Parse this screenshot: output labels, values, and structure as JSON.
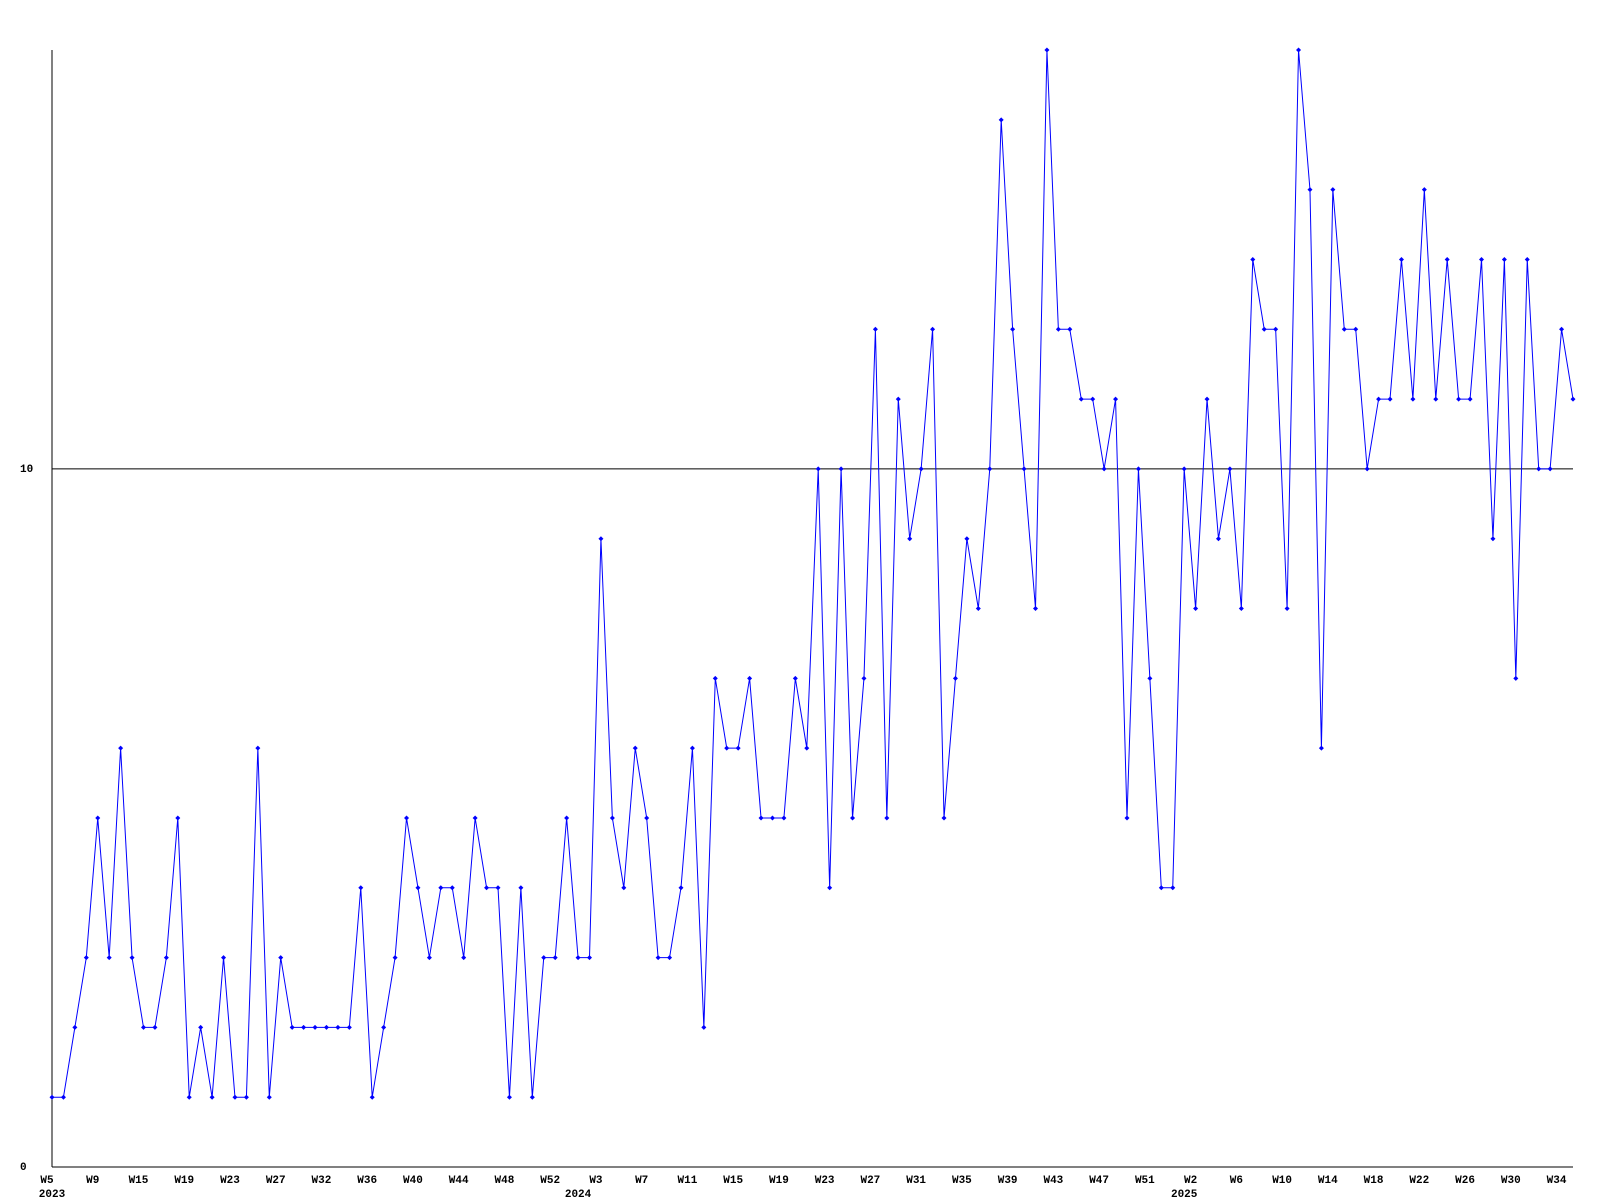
{
  "chart_data": {
    "type": "line",
    "categories": [
      "W5",
      null,
      null,
      null,
      "W9",
      null,
      null,
      null,
      "W15",
      null,
      null,
      null,
      "W19",
      null,
      null,
      null,
      "W23",
      null,
      null,
      null,
      "W27",
      null,
      null,
      null,
      "W32",
      null,
      null,
      null,
      "W36",
      null,
      null,
      null,
      "W40",
      null,
      null,
      null,
      "W44",
      null,
      null,
      null,
      "W48",
      null,
      null,
      null,
      "W52",
      null,
      null,
      null,
      "W3",
      null,
      null,
      null,
      "W7",
      null,
      null,
      null,
      "W11",
      null,
      null,
      null,
      "W15",
      null,
      null,
      null,
      "W19",
      null,
      null,
      null,
      "W23",
      null,
      null,
      null,
      "W27",
      null,
      null,
      null,
      "W31",
      null,
      null,
      null,
      "W35",
      null,
      null,
      null,
      "W39",
      null,
      null,
      null,
      "W43",
      null,
      null,
      null,
      "W47",
      null,
      null,
      null,
      "W51",
      null,
      null,
      null,
      "W2",
      null,
      null,
      null,
      "W6",
      null,
      null,
      null,
      "W10",
      null,
      null,
      null,
      "W14",
      null,
      null,
      null,
      "W18",
      null,
      null,
      null,
      "W22",
      null,
      null,
      null,
      "W26",
      null,
      null,
      null,
      "W30",
      null,
      null,
      null,
      "W34",
      null
    ],
    "category_years": [
      "2023",
      null,
      null,
      null,
      null,
      null,
      null,
      null,
      null,
      null,
      null,
      null,
      null,
      null,
      null,
      null,
      null,
      null,
      null,
      null,
      null,
      null,
      null,
      null,
      null,
      null,
      null,
      null,
      null,
      null,
      null,
      null,
      null,
      null,
      null,
      null,
      null,
      null,
      null,
      null,
      null,
      null,
      null,
      null,
      null,
      null,
      "2024",
      null,
      null,
      null,
      null,
      null,
      null,
      null,
      null,
      null,
      null,
      null,
      null,
      null,
      null,
      null,
      null,
      null,
      null,
      null,
      null,
      null,
      null,
      null,
      null,
      null,
      null,
      null,
      null,
      null,
      null,
      null,
      null,
      null,
      null,
      null,
      null,
      null,
      null,
      null,
      null,
      null,
      null,
      null,
      null,
      null,
      null,
      null,
      null,
      null,
      null,
      null,
      null,
      "2025",
      null,
      null,
      null,
      null,
      null,
      null,
      null,
      null,
      null,
      null,
      null,
      null,
      null,
      null,
      null,
      null,
      null,
      null,
      null,
      null,
      null,
      null,
      null,
      null,
      null,
      null,
      null,
      null,
      null,
      null,
      null,
      null,
      null,
      null
    ],
    "values": [
      1,
      1,
      2,
      3,
      5,
      3,
      6,
      3,
      2,
      2,
      3,
      5,
      1,
      2,
      1,
      3,
      1,
      1,
      6,
      1,
      3,
      2,
      2,
      2,
      2,
      2,
      2,
      4,
      1,
      2,
      3,
      5,
      4,
      3,
      4,
      4,
      3,
      5,
      4,
      4,
      1,
      4,
      1,
      3,
      3,
      5,
      3,
      3,
      9,
      5,
      4,
      6,
      5,
      3,
      3,
      4,
      6,
      2,
      7,
      6,
      6,
      7,
      5,
      5,
      5,
      7,
      6,
      10,
      4,
      10,
      5,
      7,
      12,
      5,
      11,
      9,
      10,
      12,
      5,
      7,
      9,
      8,
      10,
      15,
      12,
      10,
      8,
      16,
      12,
      12,
      11,
      11,
      10,
      11,
      5,
      10,
      7,
      4,
      4,
      10,
      8,
      11,
      9,
      10,
      8,
      13,
      12,
      12,
      8,
      16,
      14,
      6,
      14,
      12,
      12,
      10,
      11,
      11,
      13,
      11,
      14,
      11,
      13,
      11,
      11,
      13,
      9,
      13,
      7,
      13,
      10,
      10,
      12,
      11
    ],
    "color": "#0000ff",
    "ylim": [
      0,
      16
    ],
    "yticks": [
      0,
      10
    ],
    "grid": true
  }
}
